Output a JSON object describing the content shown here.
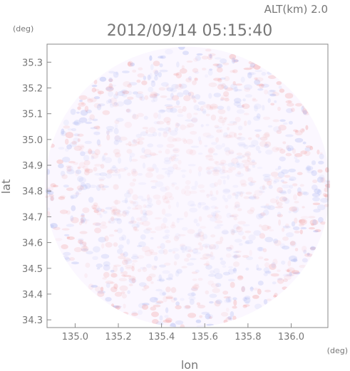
{
  "header": {
    "altitude_label": "ALT(km) 2.0",
    "timestamp": "2012/09/14 05:15:40"
  },
  "chart_data": {
    "type": "heatmap",
    "title": "2012/09/14 05:15:40",
    "subtitle": "ALT(km) 2.0",
    "xlabel": "lon",
    "ylabel": "lat",
    "x_unit": "(deg)",
    "y_unit": "(deg)",
    "xlim": [
      134.87,
      136.17
    ],
    "ylim": [
      34.27,
      35.37
    ],
    "x_ticks": [
      135.0,
      135.2,
      135.4,
      135.6,
      135.8,
      136.0
    ],
    "x_tick_labels": [
      "135.0",
      "135.2",
      "135.4",
      "135.6",
      "135.8",
      "136.0"
    ],
    "y_ticks": [
      34.3,
      34.4,
      34.5,
      34.6,
      34.7,
      34.8,
      34.9,
      35.0,
      35.1,
      35.2,
      35.3
    ],
    "y_tick_labels": [
      "34.3",
      "34.4",
      "34.5",
      "34.6",
      "34.7",
      "34.8",
      "34.9",
      "35.0",
      "35.1",
      "35.2",
      "35.3"
    ],
    "coverage": {
      "shape": "circle",
      "center": [
        135.52,
        34.815
      ],
      "radius_lon": 0.66,
      "radius_lat": 0.545
    },
    "colors": {
      "positive": "#f2a0a0",
      "negative": "#a8b4f0",
      "neutral": "#fbf7ff",
      "axis": "#888888",
      "text": "#777777"
    },
    "grid": false,
    "legend": "none"
  }
}
